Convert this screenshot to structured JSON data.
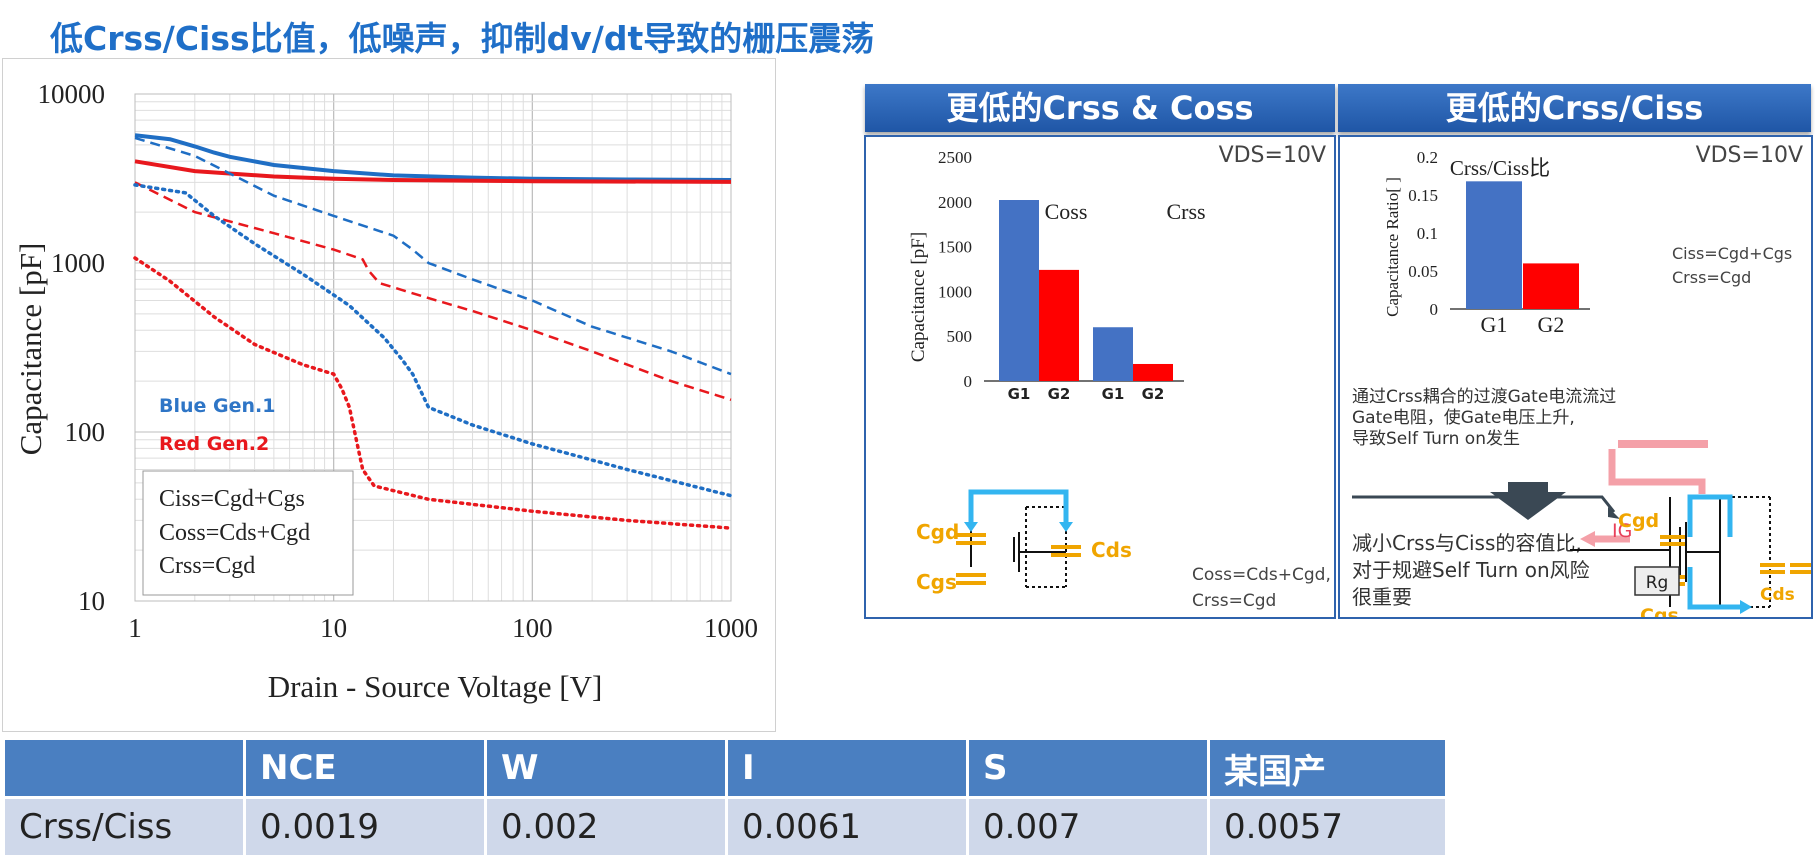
{
  "title": "低Crss/Ciss比值，低噪声，抑制dv/dt导致的栅压震荡",
  "chart_data": [
    {
      "type": "line",
      "xlabel": "Drain - Source Voltage [V]",
      "ylabel": "Capacitance [pF]",
      "xscale": "log",
      "yscale": "log",
      "xlim": [
        1,
        1000
      ],
      "ylim": [
        10,
        10000
      ],
      "xticks": [
        "1",
        "10",
        "100",
        "1000"
      ],
      "yticks": [
        "10000",
        "1000",
        "100",
        "10"
      ],
      "grid": true,
      "legend": [
        "Blue Gen.1",
        "Red Gen.2"
      ],
      "legend_box": [
        "Ciss=Cgd+Cgs",
        "Coss=Cds+Cgd",
        "Crss=Cgd"
      ],
      "colors": {
        "blue": "#1f6ec4",
        "red": "#e8181d"
      },
      "series": [
        {
          "color": "blue",
          "style": "solid",
          "points": [
            [
              1,
              5700
            ],
            [
              1.5,
              5400
            ],
            [
              2,
              4900
            ],
            [
              2.5,
              4500
            ],
            [
              3,
              4250
            ],
            [
              5,
              3800
            ],
            [
              10,
              3500
            ],
            [
              20,
              3300
            ],
            [
              50,
              3200
            ],
            [
              100,
              3150
            ],
            [
              300,
              3120
            ],
            [
              1000,
              3100
            ]
          ]
        },
        {
          "color": "red",
          "style": "solid",
          "points": [
            [
              1,
              4000
            ],
            [
              2,
              3500
            ],
            [
              5,
              3250
            ],
            [
              10,
              3150
            ],
            [
              20,
              3100
            ],
            [
              100,
              3050
            ],
            [
              1000,
              3020
            ]
          ]
        },
        {
          "color": "blue",
          "style": "dashed",
          "points": [
            [
              1,
              5500
            ],
            [
              2,
              4300
            ],
            [
              5,
              2500
            ],
            [
              10,
              1900
            ],
            [
              20,
              1450
            ],
            [
              25,
              1200
            ],
            [
              30,
              1000
            ],
            [
              50,
              800
            ],
            [
              100,
              600
            ],
            [
              200,
              420
            ],
            [
              500,
              300
            ],
            [
              1000,
              220
            ]
          ]
        },
        {
          "color": "red",
          "style": "dashed",
          "points": [
            [
              1,
              3000
            ],
            [
              2,
              2000
            ],
            [
              5,
              1500
            ],
            [
              10,
              1200
            ],
            [
              14,
              1050
            ],
            [
              15,
              900
            ],
            [
              17,
              760
            ],
            [
              30,
              620
            ],
            [
              50,
              520
            ],
            [
              100,
              400
            ],
            [
              200,
              300
            ],
            [
              500,
              200
            ],
            [
              1000,
              155
            ]
          ]
        },
        {
          "color": "blue",
          "style": "dotted",
          "points": [
            [
              1,
              2900
            ],
            [
              1.8,
              2600
            ],
            [
              2.5,
              1900
            ],
            [
              4,
              1300
            ],
            [
              7,
              860
            ],
            [
              12,
              560
            ],
            [
              18,
              360
            ],
            [
              22,
              270
            ],
            [
              25,
              220
            ],
            [
              30,
              140
            ],
            [
              50,
              110
            ],
            [
              100,
              85
            ],
            [
              300,
              60
            ],
            [
              1000,
              42
            ]
          ]
        },
        {
          "color": "red",
          "style": "dotted",
          "points": [
            [
              1,
              1070
            ],
            [
              1.5,
              780
            ],
            [
              2.5,
              480
            ],
            [
              4,
              330
            ],
            [
              7,
              250
            ],
            [
              10,
              220
            ],
            [
              11,
              180
            ],
            [
              12,
              140
            ],
            [
              13,
              90
            ],
            [
              14,
              60
            ],
            [
              16,
              48
            ],
            [
              30,
              40
            ],
            [
              100,
              34
            ],
            [
              300,
              30
            ],
            [
              1000,
              27
            ]
          ]
        }
      ]
    },
    {
      "type": "bar",
      "ylabel": "Capacitance [pF]",
      "ylim": [
        0,
        2500
      ],
      "yticks": [
        "2500",
        "2000",
        "1500",
        "1000",
        "500",
        "0"
      ],
      "groups": [
        "Coss",
        "Crss"
      ],
      "categories": [
        "G1",
        "G2",
        "G1",
        "G2"
      ],
      "values": [
        2020,
        1240,
        600,
        190
      ],
      "colors": [
        "#4472c4",
        "#ff0000",
        "#4472c4",
        "#ff0000"
      ]
    },
    {
      "type": "bar",
      "title": "Crss/Ciss比",
      "ylabel": "Capacitance Ratio[ ]",
      "ylim": [
        0,
        0.2
      ],
      "yticks": [
        "0.2",
        "0.15",
        "0.1",
        "0.05",
        "0"
      ],
      "categories": [
        "G1",
        "G2"
      ],
      "values": [
        0.168,
        0.06
      ],
      "colors": [
        "#4472c4",
        "#ff0000"
      ]
    }
  ],
  "panels": {
    "left_header": "更低的Crss & Coss",
    "right_header": "更低的Crss/Ciss",
    "vds_left": "VDS=10V",
    "vds_right": "VDS=10V",
    "left_formula1": "Coss=Cds+Cgd,",
    "left_formula2": "Crss=Cgd",
    "right_formula1": "Ciss=Cgd+Cgs",
    "right_formula2": "Crss=Cgd",
    "cap_cgd": "Cgd",
    "cap_cgs": "Cgs",
    "cap_cds": "Cds",
    "ig": "IG",
    "rg": "Rg",
    "note1_l1": "通过Crss耦合的过渡Gate电流流过",
    "note1_l2": "Gate电阻，使Gate电压上升,",
    "note1_l3": "导致Self Turn on发生",
    "note2_l1": "减小Crss与Ciss的容值比,",
    "note2_l2": "对于规避Self Turn on风险",
    "note2_l3": "很重要"
  },
  "table": {
    "headers": [
      "",
      "NCE",
      "W",
      "I",
      "S",
      "某国产"
    ],
    "row_label": "Crss/Ciss",
    "values": [
      "0.0019",
      "0.002",
      "0.0061",
      "0.007",
      "0.0057"
    ]
  }
}
